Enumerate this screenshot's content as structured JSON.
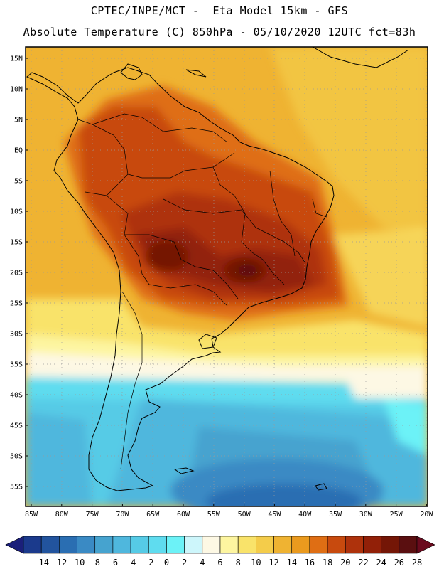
{
  "header": {
    "line1": "CPTEC/INPE/MCT -  Eta Model 15km - GFS",
    "line2": "Absolute Temperature (C) 850hPa - 05/10/2020 12UTC fct=83h"
  },
  "map": {
    "lat_labels": [
      "15N",
      "10N",
      "5N",
      "EQ",
      "5S",
      "10S",
      "15S",
      "20S",
      "25S",
      "30S",
      "35S",
      "40S",
      "45S",
      "50S",
      "55S"
    ],
    "lon_labels": [
      "85W",
      "80W",
      "75W",
      "70W",
      "65W",
      "60W",
      "55W",
      "50W",
      "45W",
      "40W",
      "35W",
      "30W",
      "25W",
      "20W"
    ]
  },
  "colorbar": {
    "colors": [
      "#1b3a8c",
      "#22549e",
      "#2a6eb2",
      "#3a8ac4",
      "#46a3cf",
      "#4fb7dd",
      "#56cbe6",
      "#5fdcef",
      "#6cf2f7",
      "#cdf6fb",
      "#fdf8e4",
      "#fdf5a0",
      "#f9e36a",
      "#f4cc4a",
      "#efb332",
      "#ea9a1e",
      "#df6e14",
      "#c84a0e",
      "#ae320c",
      "#922008",
      "#741606",
      "#5a0f10"
    ],
    "labels": [
      "-14",
      "-12",
      "-10",
      "-8",
      "-6",
      "-4",
      "-2",
      "0",
      "2",
      "4",
      "6",
      "8",
      "10",
      "12",
      "14",
      "16",
      "18",
      "20",
      "22",
      "24",
      "26",
      "28"
    ]
  }
}
